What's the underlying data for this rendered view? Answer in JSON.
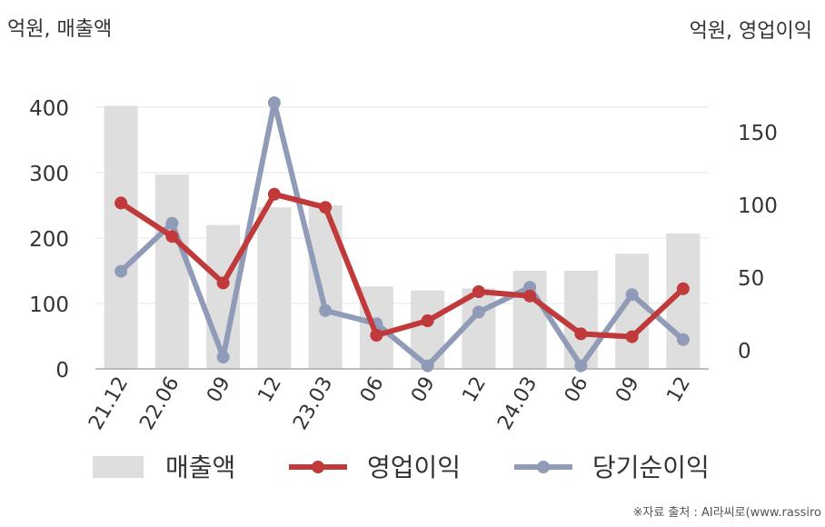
{
  "chart_data": {
    "type": "bar+line",
    "title": "",
    "left_axis_unit": "억원, 매출액",
    "right_axis_unit": "억원, 영업이익",
    "categories": [
      "21.12",
      "22.06",
      "09",
      "12",
      "23.03",
      "06",
      "09",
      "12",
      "24.03",
      "06",
      "09",
      "12"
    ],
    "left_ylim": [
      0,
      400
    ],
    "left_ticks": [
      0,
      100,
      200,
      300,
      400
    ],
    "right_ylim": [
      -8,
      169
    ],
    "right_ticks": [
      0,
      50,
      100,
      150
    ],
    "grid": true,
    "legend_position": "bottom",
    "series": [
      {
        "name": "매출액",
        "type": "bar",
        "axis": "left",
        "color": "#dedede",
        "values": [
          402,
          297,
          220,
          247,
          250,
          126,
          120,
          123,
          150,
          150,
          176,
          207
        ]
      },
      {
        "name": "영업이익",
        "type": "line",
        "axis": "right",
        "color": "#c0393b",
        "values": [
          101,
          78,
          46,
          107,
          98,
          10,
          20,
          40,
          37,
          11,
          9,
          42
        ]
      },
      {
        "name": "당기순이익",
        "type": "line",
        "axis": "right",
        "color": "#8f9bb7",
        "values": [
          54,
          87,
          -5,
          170,
          27,
          18,
          -11,
          26,
          43,
          -11,
          38,
          7
        ]
      }
    ]
  },
  "source_text": "※자료 출처 : AI라씨로(www.rassiro"
}
